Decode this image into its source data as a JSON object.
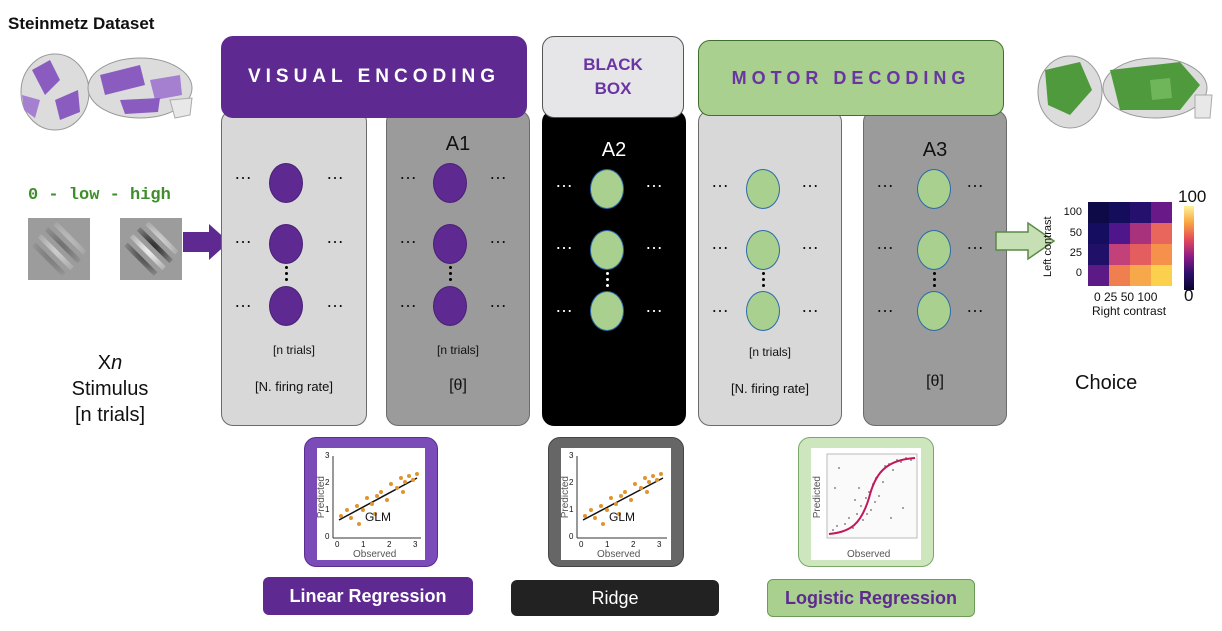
{
  "title": "Steinmetz Dataset",
  "stimulus": {
    "contrast_label": "0 - low - high",
    "x_label": "X",
    "x_sub": "n",
    "label": "Stimulus",
    "trials": "[n trials]"
  },
  "headers": {
    "visual": "VISUAL ENCODING",
    "black_line1": "BLACK",
    "black_line2": "BOX",
    "motor": "MOTOR DECODING"
  },
  "panels": [
    {
      "id": "ve-input",
      "label": "",
      "trials": "[n trials]",
      "measure": "[N. firing rate]"
    },
    {
      "id": "a1",
      "label": "A1",
      "trials": "[n trials]",
      "measure": "[θ]"
    },
    {
      "id": "a2",
      "label": "A2",
      "trials": "",
      "measure": ""
    },
    {
      "id": "md-input",
      "label": "",
      "trials": "[n trials]",
      "measure": "[N. firing rate]"
    },
    {
      "id": "a3",
      "label": "A3",
      "trials": "",
      "measure": "[θ]"
    }
  ],
  "ellipsis": "…",
  "plots": {
    "ylabel": "Predicted",
    "xlabel": "Observed",
    "glm": "GLM",
    "yticks": [
      "3",
      "2",
      "1",
      "0"
    ],
    "xticks": [
      "0",
      "1",
      "2",
      "3"
    ]
  },
  "methods": {
    "linear": "Linear Regression",
    "ridge": "Ridge",
    "logistic": "Logistic Regression"
  },
  "choice": {
    "label": "Choice",
    "ylabel": "Left contrast",
    "xlabel": "Right contrast",
    "yticks": [
      "100",
      "50",
      "25",
      "0"
    ],
    "xticks": "0 25 50 100",
    "cbar_max": "100",
    "cbar_min": "0"
  },
  "colors": {
    "purple": "#5e2a91",
    "green": "#a9d08e",
    "header_green": "#a9d08e",
    "light_panel": "#d8d8d8",
    "dark_panel": "#9b9b9b",
    "ridge_btn": "#222222"
  }
}
